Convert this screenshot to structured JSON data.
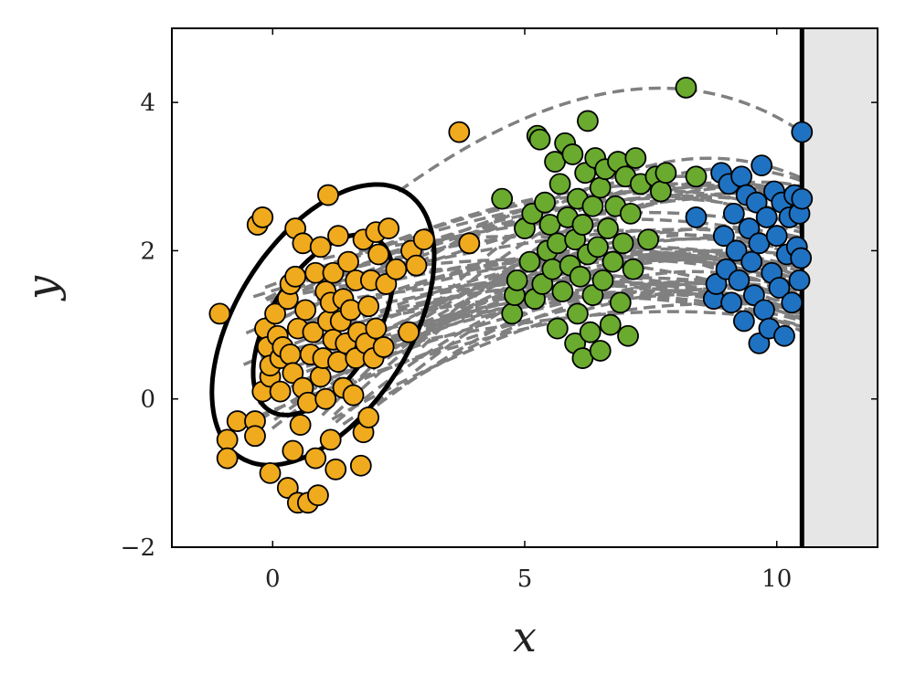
{
  "chart_data": {
    "type": "scatter",
    "xlabel": "x",
    "ylabel": "y",
    "xlim": [
      -2,
      12
    ],
    "ylim": [
      -2,
      5
    ],
    "xticks": [
      {
        "value": 0,
        "label": "0"
      },
      {
        "value": 5,
        "label": "5"
      },
      {
        "value": 10,
        "label": "10"
      }
    ],
    "yticks": [
      {
        "value": -2,
        "label": "−2"
      },
      {
        "value": 0,
        "label": "0"
      },
      {
        "value": 2,
        "label": "2"
      },
      {
        "value": 4,
        "label": "4"
      }
    ],
    "grid": false,
    "legend": "none",
    "boundary": {
      "x": 10.5,
      "shaded_region": [
        10.5,
        12
      ],
      "shade_color": "#e6e6e6",
      "line_color": "#000000"
    },
    "ellipses": [
      {
        "center": [
          1.0,
          1.0
        ],
        "semi_major": 3.4,
        "semi_minor": 1.9,
        "angle_deg": 58
      },
      {
        "center": [
          1.0,
          1.0
        ],
        "semi_major": 2.2,
        "semi_minor": 1.15,
        "angle_deg": 58
      }
    ],
    "trajectory_style": {
      "color": "#808080",
      "dash": "dashed",
      "count": 60
    },
    "series": [
      {
        "color": "#f0aa1e",
        "points": [
          [
            -1.05,
            1.15
          ],
          [
            -0.9,
            -0.55
          ],
          [
            -0.9,
            -0.8
          ],
          [
            -0.7,
            -0.3
          ],
          [
            -0.35,
            -0.3
          ],
          [
            -0.35,
            -0.5
          ],
          [
            -0.3,
            2.35
          ],
          [
            -0.2,
            2.45
          ],
          [
            -0.2,
            0.1
          ],
          [
            -0.15,
            0.95
          ],
          [
            -0.1,
            0.7
          ],
          [
            -0.05,
            0.3
          ],
          [
            -0.05,
            0.45
          ],
          [
            -0.05,
            -1.0
          ],
          [
            0.05,
            1.15
          ],
          [
            0.1,
            0.85
          ],
          [
            0.15,
            0.55
          ],
          [
            0.15,
            0.1
          ],
          [
            0.2,
            0.7
          ],
          [
            0.3,
            -1.2
          ],
          [
            0.3,
            1.35
          ],
          [
            0.35,
            0.6
          ],
          [
            0.35,
            1.55
          ],
          [
            0.4,
            0.35
          ],
          [
            0.4,
            -0.7
          ],
          [
            0.45,
            1.65
          ],
          [
            0.45,
            2.3
          ],
          [
            0.5,
            -1.4
          ],
          [
            0.5,
            0.95
          ],
          [
            0.55,
            -0.35
          ],
          [
            0.6,
            0.15
          ],
          [
            0.6,
            2.1
          ],
          [
            0.65,
            1.2
          ],
          [
            0.7,
            -1.4
          ],
          [
            0.7,
            -0.05
          ],
          [
            0.75,
            0.6
          ],
          [
            0.8,
            0.9
          ],
          [
            0.85,
            -0.8
          ],
          [
            0.85,
            1.7
          ],
          [
            0.9,
            -1.3
          ],
          [
            0.95,
            0.3
          ],
          [
            0.95,
            2.05
          ],
          [
            1.0,
            0.55
          ],
          [
            1.05,
            0.0
          ],
          [
            1.05,
            1.45
          ],
          [
            1.1,
            1.05
          ],
          [
            1.1,
            2.75
          ],
          [
            1.15,
            -0.55
          ],
          [
            1.15,
            1.3
          ],
          [
            1.2,
            0.8
          ],
          [
            1.2,
            1.7
          ],
          [
            1.25,
            -0.95
          ],
          [
            1.3,
            0.5
          ],
          [
            1.3,
            2.2
          ],
          [
            1.35,
            1.05
          ],
          [
            1.4,
            0.15
          ],
          [
            1.4,
            1.35
          ],
          [
            1.45,
            0.75
          ],
          [
            1.5,
            1.85
          ],
          [
            1.55,
            1.2
          ],
          [
            1.6,
            0.05
          ],
          [
            1.65,
            0.55
          ],
          [
            1.65,
            1.6
          ],
          [
            1.7,
            0.9
          ],
          [
            1.75,
            -0.9
          ],
          [
            1.8,
            -0.45
          ],
          [
            1.8,
            2.15
          ],
          [
            1.85,
            0.75
          ],
          [
            1.9,
            1.25
          ],
          [
            1.9,
            -0.25
          ],
          [
            1.95,
            1.6
          ],
          [
            2.0,
            0.55
          ],
          [
            2.05,
            2.25
          ],
          [
            2.05,
            0.95
          ],
          [
            2.1,
            1.95
          ],
          [
            2.2,
            0.7
          ],
          [
            2.25,
            1.55
          ],
          [
            2.3,
            2.3
          ],
          [
            2.45,
            1.75
          ],
          [
            2.7,
            0.9
          ],
          [
            2.75,
            2.0
          ],
          [
            2.85,
            1.8
          ],
          [
            3.0,
            2.15
          ],
          [
            3.7,
            3.6
          ],
          [
            3.9,
            2.1
          ]
        ]
      },
      {
        "color": "#6aaa2f",
        "points": [
          [
            4.55,
            2.7
          ],
          [
            4.75,
            1.15
          ],
          [
            4.8,
            1.4
          ],
          [
            4.85,
            1.6
          ],
          [
            5.0,
            2.3
          ],
          [
            5.1,
            1.85
          ],
          [
            5.15,
            2.5
          ],
          [
            5.2,
            1.35
          ],
          [
            5.25,
            3.55
          ],
          [
            5.3,
            3.5
          ],
          [
            5.35,
            1.55
          ],
          [
            5.4,
            2.65
          ],
          [
            5.45,
            2.0
          ],
          [
            5.5,
            2.35
          ],
          [
            5.55,
            1.75
          ],
          [
            5.6,
            3.2
          ],
          [
            5.65,
            0.95
          ],
          [
            5.65,
            2.1
          ],
          [
            5.7,
            2.9
          ],
          [
            5.75,
            1.45
          ],
          [
            5.8,
            3.45
          ],
          [
            5.85,
            2.45
          ],
          [
            5.9,
            1.8
          ],
          [
            5.95,
            3.3
          ],
          [
            6.0,
            0.75
          ],
          [
            6.0,
            2.15
          ],
          [
            6.05,
            1.15
          ],
          [
            6.05,
            2.7
          ],
          [
            6.1,
            1.65
          ],
          [
            6.15,
            0.55
          ],
          [
            6.15,
            2.35
          ],
          [
            6.2,
            3.05
          ],
          [
            6.25,
            3.75
          ],
          [
            6.25,
            1.95
          ],
          [
            6.3,
            0.9
          ],
          [
            6.35,
            2.6
          ],
          [
            6.35,
            1.4
          ],
          [
            6.4,
            3.25
          ],
          [
            6.45,
            2.05
          ],
          [
            6.5,
            0.65
          ],
          [
            6.5,
            2.85
          ],
          [
            6.55,
            1.6
          ],
          [
            6.6,
            3.1
          ],
          [
            6.65,
            2.3
          ],
          [
            6.7,
            1.0
          ],
          [
            6.75,
            1.85
          ],
          [
            6.8,
            2.6
          ],
          [
            6.85,
            3.2
          ],
          [
            6.9,
            1.3
          ],
          [
            6.95,
            2.1
          ],
          [
            7.0,
            3.0
          ],
          [
            7.05,
            0.85
          ],
          [
            7.1,
            2.5
          ],
          [
            7.15,
            1.75
          ],
          [
            7.2,
            3.25
          ],
          [
            7.3,
            2.9
          ],
          [
            7.45,
            2.15
          ],
          [
            7.6,
            3.0
          ],
          [
            7.7,
            2.8
          ],
          [
            7.8,
            3.05
          ],
          [
            8.2,
            4.2
          ],
          [
            8.4,
            3.0
          ]
        ]
      },
      {
        "color": "#1f72c2",
        "points": [
          [
            8.4,
            2.45
          ],
          [
            8.75,
            1.35
          ],
          [
            8.8,
            1.55
          ],
          [
            8.9,
            3.05
          ],
          [
            8.95,
            2.2
          ],
          [
            9.0,
            1.75
          ],
          [
            9.05,
            2.9
          ],
          [
            9.1,
            1.3
          ],
          [
            9.15,
            2.5
          ],
          [
            9.2,
            2.0
          ],
          [
            9.25,
            1.6
          ],
          [
            9.3,
            3.0
          ],
          [
            9.35,
            1.05
          ],
          [
            9.4,
            2.75
          ],
          [
            9.45,
            2.3
          ],
          [
            9.5,
            1.85
          ],
          [
            9.55,
            1.4
          ],
          [
            9.6,
            2.65
          ],
          [
            9.65,
            0.75
          ],
          [
            9.65,
            2.1
          ],
          [
            9.7,
            3.15
          ],
          [
            9.75,
            1.2
          ],
          [
            9.8,
            2.45
          ],
          [
            9.85,
            0.95
          ],
          [
            9.9,
            1.7
          ],
          [
            9.95,
            2.8
          ],
          [
            10.0,
            2.2
          ],
          [
            10.05,
            1.5
          ],
          [
            10.1,
            2.65
          ],
          [
            10.15,
            0.85
          ],
          [
            10.2,
            1.95
          ],
          [
            10.25,
            2.45
          ],
          [
            10.3,
            1.3
          ],
          [
            10.35,
            2.75
          ],
          [
            10.4,
            2.05
          ],
          [
            10.45,
            1.6
          ],
          [
            10.45,
            2.5
          ],
          [
            10.48,
            1.9
          ],
          [
            10.5,
            2.7
          ],
          [
            10.5,
            3.6
          ]
        ]
      }
    ]
  }
}
